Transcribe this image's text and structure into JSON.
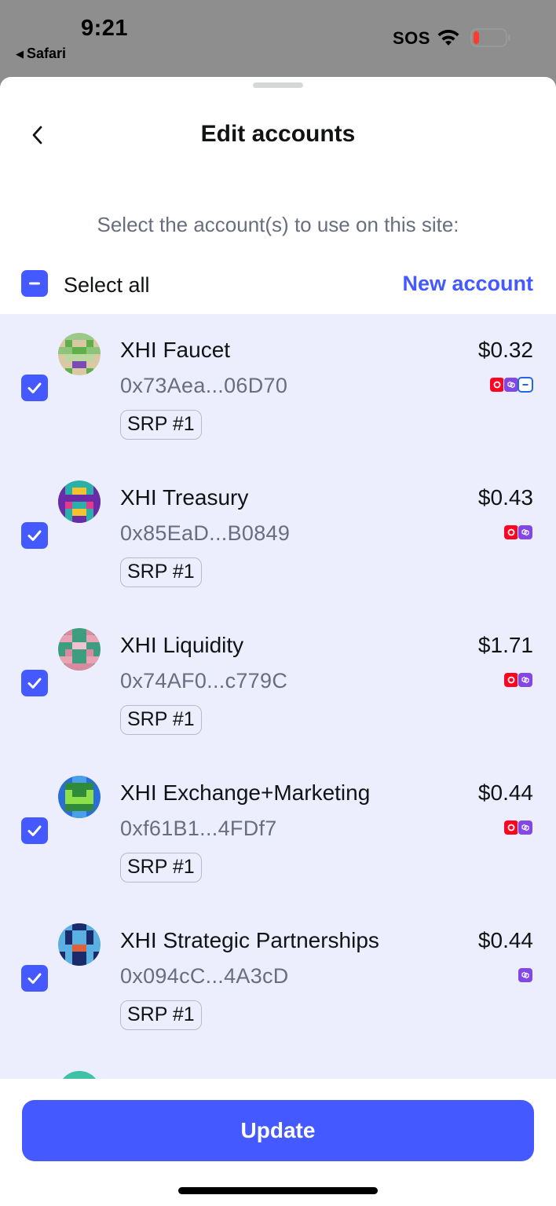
{
  "status_bar": {
    "time": "9:21",
    "back_app": "Safari",
    "carrier": "SOS",
    "battery_level": 0.1
  },
  "header": {
    "title": "Edit accounts"
  },
  "subtitle": "Select the account(s) to use on this site:",
  "select_all": {
    "label": "Select all",
    "state": "indeterminate"
  },
  "new_account_label": "New account",
  "accounts": [
    {
      "name": "XHI Faucet",
      "address": "0x73Aea...06D70",
      "srp": "SRP #1",
      "balance": "$0.32",
      "checked": true,
      "networks": [
        "optimism-icon",
        "polygon-icon",
        "linea-icon"
      ]
    },
    {
      "name": "XHI Treasury",
      "address": "0x85EaD...B0849",
      "srp": "SRP #1",
      "balance": "$0.43",
      "checked": true,
      "networks": [
        "optimism-icon",
        "polygon-icon"
      ]
    },
    {
      "name": "XHI Liquidity",
      "address": "0x74AF0...c779C",
      "srp": "SRP #1",
      "balance": "$1.71",
      "checked": true,
      "networks": [
        "optimism-icon",
        "polygon-icon"
      ]
    },
    {
      "name": "XHI Exchange+Marketing",
      "address": "0xf61B1...4FDf7",
      "srp": "SRP #1",
      "balance": "$0.44",
      "checked": true,
      "networks": [
        "optimism-icon",
        "polygon-icon"
      ]
    },
    {
      "name": "XHI Strategic Partnerships",
      "address": "0x094cC...4A3cD",
      "srp": "SRP #1",
      "balance": "$0.44",
      "checked": true,
      "networks": [
        "polygon-icon"
      ]
    }
  ],
  "update_button_label": "Update",
  "colors": {
    "accent": "#4459ff",
    "list_background": "#eceefe",
    "text_primary": "#121314",
    "text_secondary": "#686e7d",
    "optimism": "#ff0420",
    "polygon": "#8247e5",
    "linea": "#2168e8"
  }
}
